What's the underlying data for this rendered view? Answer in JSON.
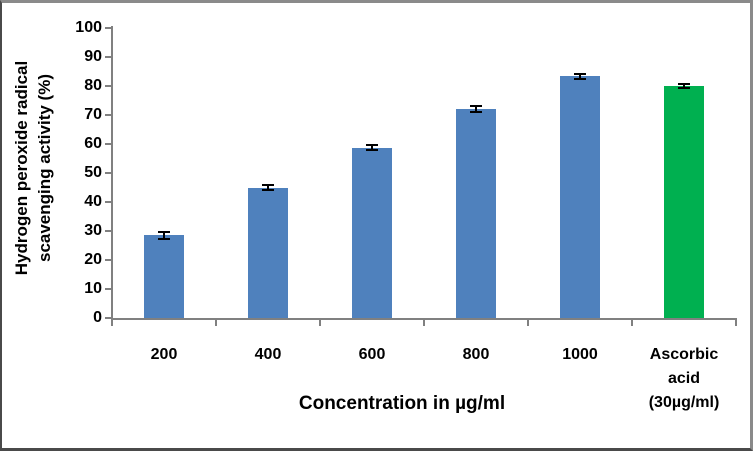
{
  "figure": {
    "background": "#ffffff",
    "border_color": "#6f6f6f"
  },
  "chart_data": {
    "type": "bar",
    "title": "",
    "categories": [
      "200",
      "400",
      "600",
      "800",
      "1000",
      "Ascorbic acid (30µg/ml)"
    ],
    "values": [
      28.5,
      45,
      58.7,
      72,
      83.3,
      80
    ],
    "errors": [
      1.2,
      1.0,
      0.8,
      1.0,
      0.8,
      0.8
    ],
    "bar_colors": [
      "#4F81BD",
      "#4F81BD",
      "#4F81BD",
      "#4F81BD",
      "#4F81BD",
      "#00B050"
    ],
    "xlabel": "Concentration in µg/ml",
    "ylabel": "Hydrogen peroxide radical scavenging activity (%)",
    "ylabel_lines": [
      "Hydrogen peroxide radical",
      "scavenging activity (%)"
    ],
    "ylim": [
      0,
      100
    ],
    "ytick_step": 10,
    "ytick_labels": [
      "0",
      "10",
      "20",
      "30",
      "40",
      "50",
      "60",
      "70",
      "80",
      "90",
      "100"
    ],
    "grid": false,
    "legend": "none",
    "error_bar_color": "#000000",
    "axis_color": "#808080",
    "bar_gap_layout": "single-series, one bar per category"
  }
}
